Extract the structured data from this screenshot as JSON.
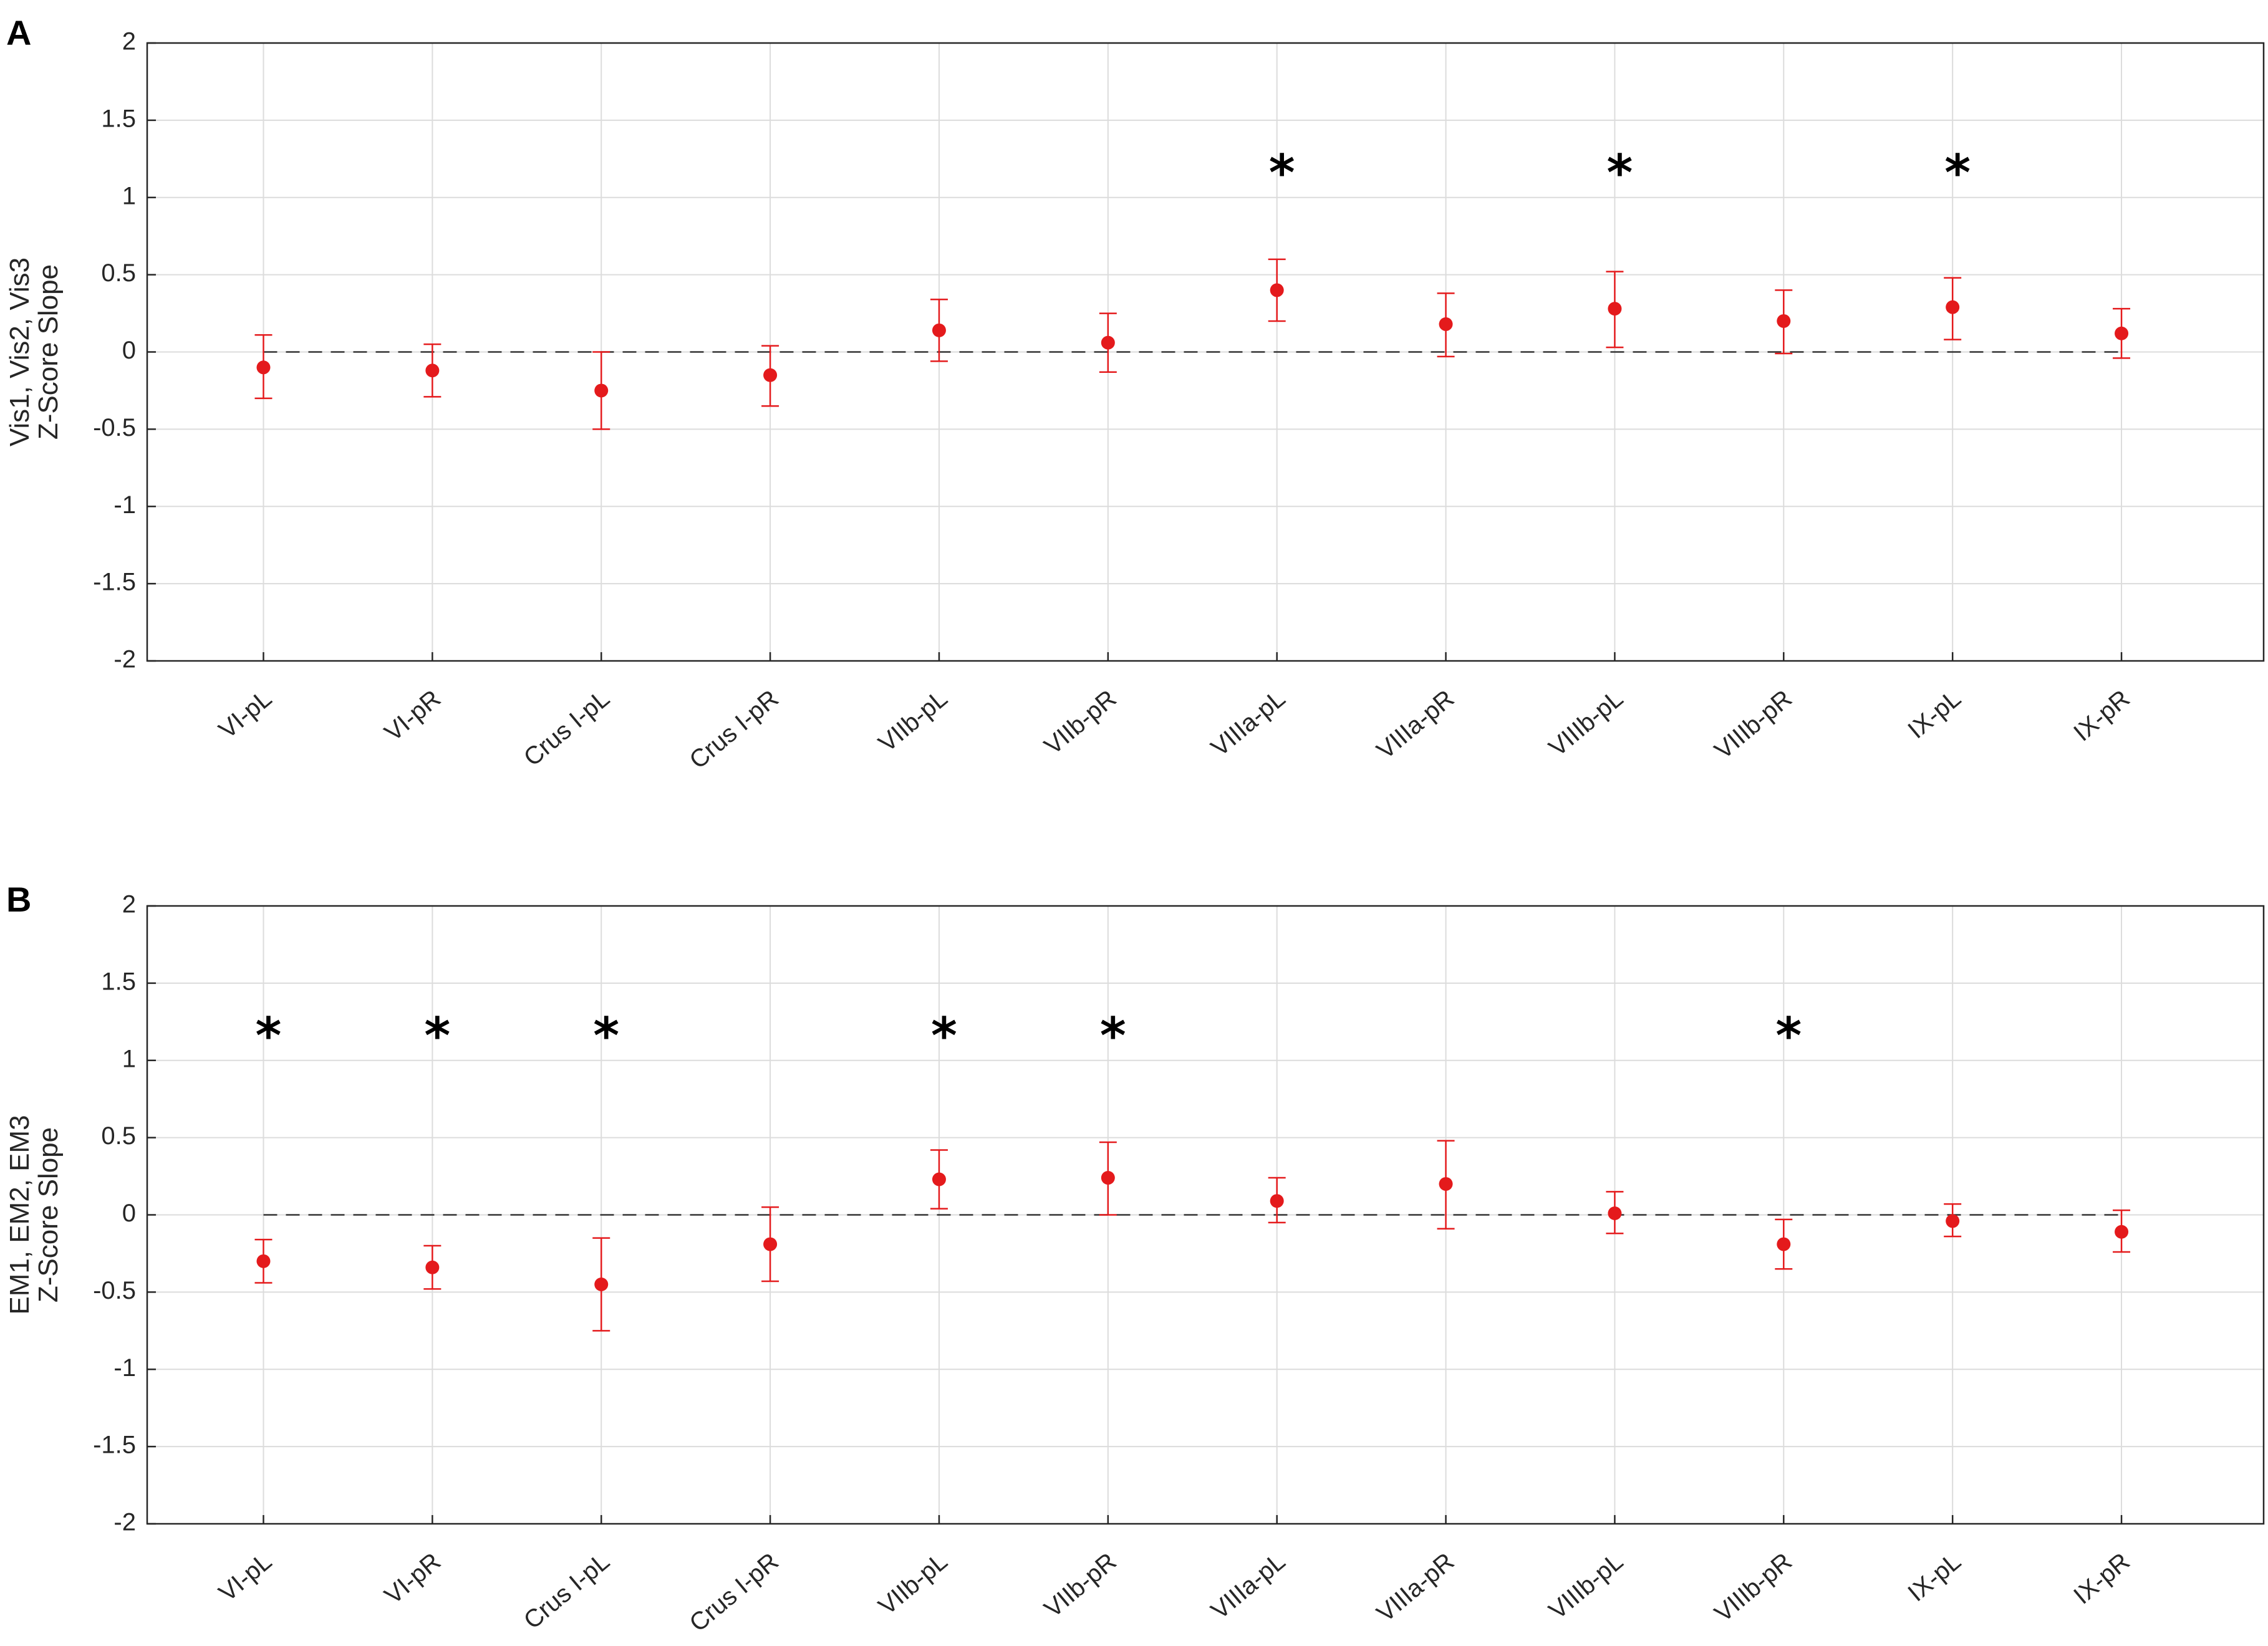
{
  "colors": {
    "marker": "#e41a1c",
    "star": "#000000",
    "zero_line": "#333333"
  },
  "chart_data": [
    {
      "panel": "A",
      "type": "scatter",
      "ylabel_lines": [
        "Vis1, Vis2, Vis3",
        "Z-Score Slope"
      ],
      "categories": [
        "VI-pL",
        "VI-pR",
        "Crus I-pL",
        "Crus I-pR",
        "VIIb-pL",
        "VIIb-pR",
        "VIIIa-pL",
        "VIIIa-pR",
        "VIIIb-pL",
        "VIIIb-pR",
        "IX-pL",
        "IX-pR"
      ],
      "values": [
        -0.1,
        -0.12,
        -0.25,
        -0.15,
        0.14,
        0.06,
        0.4,
        0.18,
        0.28,
        0.2,
        0.29,
        0.12
      ],
      "err_lower": [
        -0.3,
        -0.29,
        -0.5,
        -0.35,
        -0.06,
        -0.13,
        0.2,
        -0.03,
        0.03,
        -0.01,
        0.08,
        -0.04
      ],
      "err_upper": [
        0.11,
        0.05,
        0.0,
        0.04,
        0.34,
        0.25,
        0.6,
        0.38,
        0.52,
        0.4,
        0.48,
        0.28
      ],
      "significant": [
        false,
        false,
        false,
        false,
        false,
        false,
        true,
        false,
        true,
        false,
        true,
        false
      ],
      "star_symbol": "*",
      "ylim": [
        -2,
        2
      ],
      "yticks": [
        "2",
        "1.5",
        "1",
        "0.5",
        "0",
        "-0.5",
        "-1",
        "-1.5",
        "-2"
      ],
      "grid": true,
      "reference_line": 0
    },
    {
      "panel": "B",
      "type": "scatter",
      "ylabel_lines": [
        "EM1, EM2, EM3",
        "Z-Score Slope"
      ],
      "categories": [
        "VI-pL",
        "VI-pR",
        "Crus I-pL",
        "Crus I-pR",
        "VIIb-pL",
        "VIIb-pR",
        "VIIIa-pL",
        "VIIIa-pR",
        "VIIIb-pL",
        "VIIIb-pR",
        "IX-pL",
        "IX-pR"
      ],
      "values": [
        -0.3,
        -0.34,
        -0.45,
        -0.19,
        0.23,
        0.24,
        0.09,
        0.2,
        0.01,
        -0.19,
        -0.04,
        -0.11
      ],
      "err_lower": [
        -0.44,
        -0.48,
        -0.75,
        -0.43,
        0.04,
        0.0,
        -0.05,
        -0.09,
        -0.12,
        -0.35,
        -0.14,
        -0.24
      ],
      "err_upper": [
        -0.16,
        -0.2,
        -0.15,
        0.05,
        0.42,
        0.47,
        0.24,
        0.48,
        0.15,
        -0.03,
        0.07,
        0.03
      ],
      "significant": [
        true,
        true,
        true,
        false,
        true,
        true,
        false,
        false,
        false,
        true,
        false,
        false
      ],
      "star_symbol": "*",
      "ylim": [
        -2,
        2
      ],
      "yticks": [
        "2",
        "1.5",
        "1",
        "0.5",
        "0",
        "-0.5",
        "-1",
        "-1.5",
        "-2"
      ],
      "grid": true,
      "reference_line": 0
    }
  ]
}
